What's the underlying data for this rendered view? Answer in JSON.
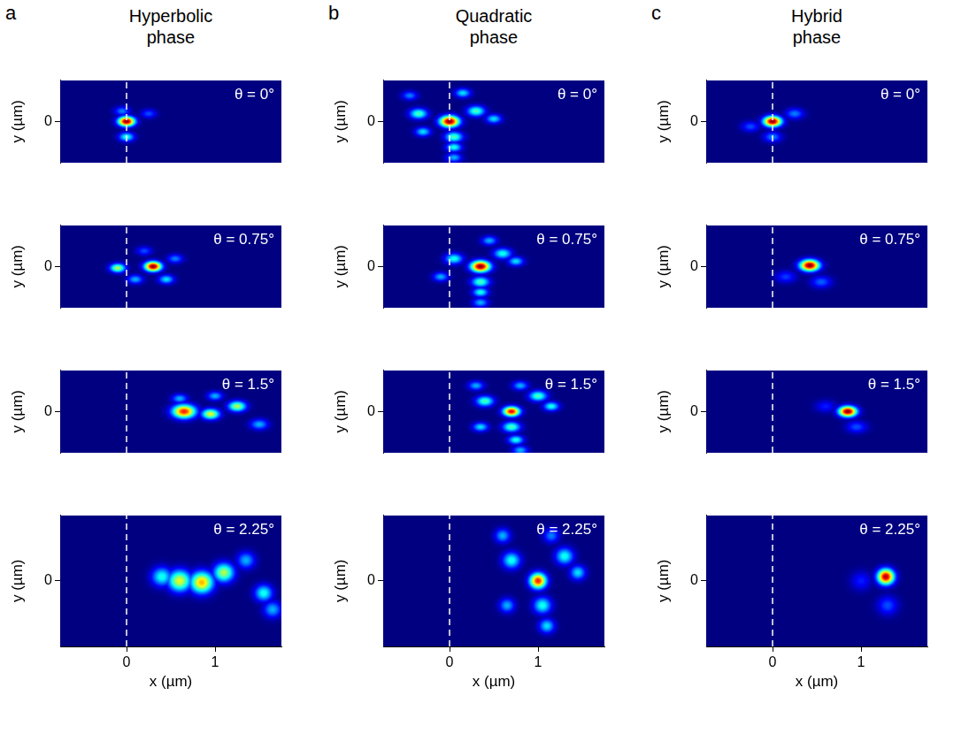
{
  "chart_data": [
    {
      "letter": "a",
      "title": "Hyperbolic phase",
      "panels": [
        {
          "type": "heatmap",
          "annotation": "θ = 0°",
          "y_label": "y (µm)",
          "xlim": [
            -0.75,
            1.75
          ],
          "ylim": [
            -0.8,
            0.8
          ],
          "yticks": [
            0
          ],
          "tick_labels": "y",
          "vline": 0,
          "spots": [
            {
              "x": 0,
              "y": 0,
              "size": 0.065,
              "intensity": 1
            },
            {
              "x": 0,
              "y": -0.3,
              "size": 0.06,
              "intensity": 0.4
            },
            {
              "x": -0.05,
              "y": 0.2,
              "size": 0.06,
              "intensity": 0.25
            },
            {
              "x": 0.25,
              "y": 0.15,
              "size": 0.06,
              "intensity": 0.2
            }
          ]
        },
        {
          "type": "heatmap",
          "annotation": "θ = 0.75°",
          "y_label": "y (µm)",
          "xlim": [
            -0.75,
            1.75
          ],
          "ylim": [
            -0.8,
            0.8
          ],
          "yticks": [
            0
          ],
          "tick_labels": "y",
          "vline": 0,
          "spots": [
            {
              "x": 0.3,
              "y": 0,
              "size": 0.065,
              "intensity": 1
            },
            {
              "x": -0.1,
              "y": -0.03,
              "size": 0.06,
              "intensity": 0.55
            },
            {
              "x": 0.45,
              "y": -0.25,
              "size": 0.06,
              "intensity": 0.35
            },
            {
              "x": 0.1,
              "y": -0.25,
              "size": 0.06,
              "intensity": 0.3
            },
            {
              "x": 0.55,
              "y": 0.15,
              "size": 0.06,
              "intensity": 0.25
            },
            {
              "x": 0.2,
              "y": 0.3,
              "size": 0.06,
              "intensity": 0.2
            }
          ]
        },
        {
          "type": "heatmap",
          "annotation": "θ = 1.5°",
          "y_label": "y (µm)",
          "xlim": [
            -0.75,
            1.75
          ],
          "ylim": [
            -0.8,
            0.8
          ],
          "yticks": [
            0
          ],
          "tick_labels": "y",
          "vline": 0,
          "spots": [
            {
              "x": 0.65,
              "y": 0,
              "size": 0.09,
              "intensity": 0.85
            },
            {
              "x": 0.95,
              "y": -0.05,
              "size": 0.07,
              "intensity": 0.6
            },
            {
              "x": 1.25,
              "y": 0.1,
              "size": 0.07,
              "intensity": 0.55
            },
            {
              "x": 1.5,
              "y": -0.25,
              "size": 0.07,
              "intensity": 0.3
            },
            {
              "x": 0.6,
              "y": 0.25,
              "size": 0.06,
              "intensity": 0.3
            },
            {
              "x": 1.0,
              "y": 0.3,
              "size": 0.06,
              "intensity": 0.3
            }
          ]
        },
        {
          "type": "heatmap",
          "annotation": "θ = 2.25°",
          "y_label": "y (µm)",
          "x_label": "x (µm)",
          "xlim": [
            -0.75,
            1.75
          ],
          "ylim": [
            -0.8,
            0.8
          ],
          "xticks": [
            0,
            1
          ],
          "yticks": [
            0
          ],
          "vline": 0,
          "spots": [
            {
              "x": 0.4,
              "y": 0.05,
              "size": 0.08,
              "intensity": 0.4
            },
            {
              "x": 0.6,
              "y": 0,
              "size": 0.09,
              "intensity": 0.6
            },
            {
              "x": 0.85,
              "y": -0.02,
              "size": 0.09,
              "intensity": 0.7
            },
            {
              "x": 1.1,
              "y": 0.1,
              "size": 0.08,
              "intensity": 0.55
            },
            {
              "x": 1.35,
              "y": 0.25,
              "size": 0.07,
              "intensity": 0.3
            },
            {
              "x": 1.55,
              "y": -0.15,
              "size": 0.07,
              "intensity": 0.4
            },
            {
              "x": 1.65,
              "y": -0.35,
              "size": 0.07,
              "intensity": 0.3
            }
          ]
        }
      ]
    },
    {
      "letter": "b",
      "title": "Quadratic phase",
      "panels": [
        {
          "type": "heatmap",
          "annotation": "θ = 0°",
          "y_label": "y (µm)",
          "xlim": [
            -0.75,
            1.75
          ],
          "ylim": [
            -0.8,
            0.8
          ],
          "yticks": [
            0
          ],
          "tick_labels": "y",
          "vline": 0,
          "spots": [
            {
              "x": 0,
              "y": 0,
              "size": 0.075,
              "intensity": 1
            },
            {
              "x": -0.35,
              "y": 0.15,
              "size": 0.07,
              "intensity": 0.45
            },
            {
              "x": -0.3,
              "y": -0.2,
              "size": 0.06,
              "intensity": 0.35
            },
            {
              "x": 0.3,
              "y": 0.2,
              "size": 0.07,
              "intensity": 0.45
            },
            {
              "x": 0.5,
              "y": 0.05,
              "size": 0.06,
              "intensity": 0.35
            },
            {
              "x": 0.05,
              "y": -0.3,
              "size": 0.07,
              "intensity": 0.45
            },
            {
              "x": 0.05,
              "y": -0.5,
              "size": 0.06,
              "intensity": 0.4
            },
            {
              "x": 0.05,
              "y": -0.7,
              "size": 0.06,
              "intensity": 0.3
            },
            {
              "x": 0.15,
              "y": 0.55,
              "size": 0.06,
              "intensity": 0.35
            },
            {
              "x": -0.45,
              "y": 0.5,
              "size": 0.06,
              "intensity": 0.25
            }
          ]
        },
        {
          "type": "heatmap",
          "annotation": "θ = 0.75°",
          "y_label": "y (µm)",
          "xlim": [
            -0.75,
            1.75
          ],
          "ylim": [
            -0.8,
            0.8
          ],
          "yticks": [
            0
          ],
          "tick_labels": "y",
          "vline": 0,
          "spots": [
            {
              "x": 0.35,
              "y": 0,
              "size": 0.075,
              "intensity": 1
            },
            {
              "x": 0.05,
              "y": 0.15,
              "size": 0.07,
              "intensity": 0.4
            },
            {
              "x": 0.6,
              "y": 0.25,
              "size": 0.07,
              "intensity": 0.4
            },
            {
              "x": 0.75,
              "y": 0.1,
              "size": 0.06,
              "intensity": 0.35
            },
            {
              "x": 0.35,
              "y": -0.3,
              "size": 0.07,
              "intensity": 0.45
            },
            {
              "x": 0.35,
              "y": -0.5,
              "size": 0.06,
              "intensity": 0.4
            },
            {
              "x": 0.35,
              "y": -0.7,
              "size": 0.06,
              "intensity": 0.3
            },
            {
              "x": 0.45,
              "y": 0.5,
              "size": 0.06,
              "intensity": 0.3
            },
            {
              "x": -0.1,
              "y": -0.2,
              "size": 0.06,
              "intensity": 0.3
            }
          ]
        },
        {
          "type": "heatmap",
          "annotation": "θ = 1.5°",
          "y_label": "y (µm)",
          "xlim": [
            -0.75,
            1.75
          ],
          "ylim": [
            -0.8,
            0.8
          ],
          "yticks": [
            0
          ],
          "tick_labels": "y",
          "vline": 0,
          "spots": [
            {
              "x": 0.7,
              "y": 0,
              "size": 0.065,
              "intensity": 0.9
            },
            {
              "x": 0.4,
              "y": 0.2,
              "size": 0.07,
              "intensity": 0.45
            },
            {
              "x": 1.0,
              "y": 0.3,
              "size": 0.07,
              "intensity": 0.45
            },
            {
              "x": 1.15,
              "y": 0.1,
              "size": 0.06,
              "intensity": 0.4
            },
            {
              "x": 0.7,
              "y": -0.3,
              "size": 0.07,
              "intensity": 0.45
            },
            {
              "x": 0.75,
              "y": -0.55,
              "size": 0.06,
              "intensity": 0.4
            },
            {
              "x": 0.8,
              "y": -0.75,
              "size": 0.06,
              "intensity": 0.3
            },
            {
              "x": 0.35,
              "y": -0.3,
              "size": 0.06,
              "intensity": 0.35
            },
            {
              "x": 0.3,
              "y": 0.5,
              "size": 0.06,
              "intensity": 0.3
            },
            {
              "x": 0.8,
              "y": 0.5,
              "size": 0.06,
              "intensity": 0.3
            }
          ]
        },
        {
          "type": "heatmap",
          "annotation": "θ = 2.25°",
          "y_label": "y (µm)",
          "x_label": "x (µm)",
          "xlim": [
            -0.75,
            1.75
          ],
          "ylim": [
            -0.8,
            0.8
          ],
          "xticks": [
            0,
            1
          ],
          "yticks": [
            0
          ],
          "vline": 0,
          "spots": [
            {
              "x": 1.0,
              "y": 0,
              "size": 0.065,
              "intensity": 0.85
            },
            {
              "x": 0.7,
              "y": 0.25,
              "size": 0.07,
              "intensity": 0.4
            },
            {
              "x": 1.3,
              "y": 0.3,
              "size": 0.07,
              "intensity": 0.4
            },
            {
              "x": 1.45,
              "y": 0.1,
              "size": 0.06,
              "intensity": 0.35
            },
            {
              "x": 1.05,
              "y": -0.3,
              "size": 0.07,
              "intensity": 0.4
            },
            {
              "x": 1.1,
              "y": -0.55,
              "size": 0.06,
              "intensity": 0.35
            },
            {
              "x": 0.65,
              "y": -0.3,
              "size": 0.06,
              "intensity": 0.3
            },
            {
              "x": 0.6,
              "y": 0.55,
              "size": 0.06,
              "intensity": 0.3
            },
            {
              "x": 1.15,
              "y": 0.55,
              "size": 0.06,
              "intensity": 0.25
            }
          ]
        }
      ]
    },
    {
      "letter": "c",
      "title": "Hybrid phase",
      "panels": [
        {
          "type": "heatmap",
          "annotation": "θ = 0°",
          "y_label": "y (µm)",
          "xlim": [
            -0.75,
            1.75
          ],
          "ylim": [
            -0.8,
            0.8
          ],
          "yticks": [
            0
          ],
          "tick_labels": "y",
          "vline": 0,
          "spots": [
            {
              "x": 0,
              "y": 0,
              "size": 0.07,
              "intensity": 1
            },
            {
              "x": 0.25,
              "y": 0.15,
              "size": 0.07,
              "intensity": 0.25
            },
            {
              "x": 0,
              "y": -0.3,
              "size": 0.07,
              "intensity": 0.25
            },
            {
              "x": -0.25,
              "y": -0.1,
              "size": 0.07,
              "intensity": 0.2
            }
          ]
        },
        {
          "type": "heatmap",
          "annotation": "θ = 0.75°",
          "y_label": "y (µm)",
          "xlim": [
            -0.75,
            1.75
          ],
          "ylim": [
            -0.8,
            0.8
          ],
          "yticks": [
            0
          ],
          "tick_labels": "y",
          "vline": 0,
          "spots": [
            {
              "x": 0.42,
              "y": 0.02,
              "size": 0.075,
              "intensity": 1
            },
            {
              "x": 0.55,
              "y": -0.3,
              "size": 0.08,
              "intensity": 0.22
            },
            {
              "x": 0.15,
              "y": -0.2,
              "size": 0.08,
              "intensity": 0.18
            }
          ]
        },
        {
          "type": "heatmap",
          "annotation": "θ = 1.5°",
          "y_label": "y (µm)",
          "xlim": [
            -0.75,
            1.75
          ],
          "ylim": [
            -0.8,
            0.8
          ],
          "yticks": [
            0
          ],
          "tick_labels": "y",
          "vline": 0,
          "spots": [
            {
              "x": 0.85,
              "y": 0,
              "size": 0.07,
              "intensity": 1
            },
            {
              "x": 0.95,
              "y": -0.3,
              "size": 0.08,
              "intensity": 0.2
            },
            {
              "x": 0.6,
              "y": 0.1,
              "size": 0.08,
              "intensity": 0.15
            }
          ]
        },
        {
          "type": "heatmap",
          "annotation": "θ = 2.25°",
          "y_label": "y (µm)",
          "x_label": "x (µm)",
          "xlim": [
            -0.75,
            1.75
          ],
          "ylim": [
            -0.8,
            0.8
          ],
          "xticks": [
            0,
            1
          ],
          "yticks": [
            0
          ],
          "vline": 0,
          "spots": [
            {
              "x": 1.28,
              "y": 0.05,
              "size": 0.065,
              "intensity": 0.95
            },
            {
              "x": 1.3,
              "y": -0.3,
              "size": 0.08,
              "intensity": 0.2
            },
            {
              "x": 1.0,
              "y": 0,
              "size": 0.08,
              "intensity": 0.15
            }
          ]
        }
      ]
    }
  ]
}
